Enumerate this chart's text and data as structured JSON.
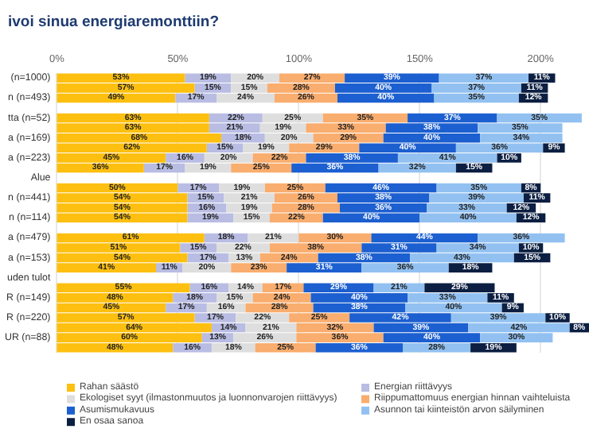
{
  "chart_data": {
    "type": "bar",
    "orientation": "horizontal",
    "stacked": true,
    "title": "ivoi sinua energiaremonttiin?",
    "categories": [
      "(n=1000)",
      null,
      "n (n=493)",
      null,
      "tta (n=52)",
      null,
      "a (n=169)",
      null,
      "a (n=223)",
      null,
      "Alue",
      null,
      "n (n=441)",
      null,
      "n (n=114)",
      null,
      "a (n=479)",
      null,
      "a (n=153)",
      null,
      "uden tulot",
      null,
      "R (n=149)",
      null,
      "R (n=220)",
      null,
      "UR (n=88)",
      null
    ],
    "xlim": [
      0,
      220
    ],
    "xticks": [
      {
        "value": 0,
        "label": "0%"
      },
      {
        "value": 50,
        "label": "50%"
      },
      {
        "value": 100,
        "label": "100%"
      },
      {
        "value": 150,
        "label": "150%"
      },
      {
        "value": 200,
        "label": "200%"
      }
    ],
    "grid": "x",
    "legend": "bottom",
    "series": [
      {
        "name": "Rahan säästö",
        "color": "#fdc010",
        "values": [
          53,
          57,
          49,
          null,
          63,
          63,
          68,
          62,
          45,
          36,
          null,
          50,
          54,
          54,
          54,
          null,
          61,
          51,
          54,
          41,
          null,
          55,
          48,
          45,
          57,
          64,
          60,
          48
        ],
        "value_labels": [
          "53%",
          "57%",
          "49%",
          null,
          "63%",
          "63%",
          "68%",
          "62%",
          "45%",
          "36%",
          null,
          "50%",
          "54%",
          "54%",
          "54%",
          null,
          "61%",
          "51%",
          "54%",
          "41%",
          null,
          "55%",
          "48%",
          "45%",
          "57%",
          "64%",
          "60%",
          "48%"
        ]
      },
      {
        "name": "Energian riittävyys",
        "color": "#b9bde3",
        "values": [
          19,
          15,
          17,
          null,
          22,
          21,
          18,
          15,
          16,
          17,
          null,
          17,
          15,
          16,
          19,
          null,
          18,
          15,
          17,
          11,
          null,
          16,
          18,
          17,
          17,
          14,
          13,
          16
        ],
        "value_labels": [
          "19%",
          "15%",
          "17%",
          null,
          "22%",
          "21%",
          "18%",
          "15%",
          "16%",
          "17%",
          null,
          "17%",
          "15%",
          "16%",
          "19%",
          null,
          "18%",
          "15%",
          "17%",
          "11%",
          null,
          "16%",
          "18%",
          "17%",
          "17%",
          "14%",
          "13%",
          "16%"
        ]
      },
      {
        "name": "Ekologiset syyt (ilmastonmuutos ja luonnonvarojen riittävyys)",
        "color": "#dedede",
        "values": [
          20,
          15,
          24,
          null,
          25,
          19,
          20,
          19,
          20,
          19,
          null,
          19,
          21,
          19,
          15,
          null,
          21,
          22,
          13,
          20,
          null,
          14,
          15,
          16,
          22,
          21,
          26,
          18
        ],
        "value_labels": [
          "20%",
          "15%",
          "24%",
          null,
          "25%",
          "19%",
          "20%",
          "19%",
          "20%",
          "19%",
          null,
          "19%",
          "21%",
          "19%",
          "15%",
          null,
          "21%",
          "22%",
          "13%",
          "20%",
          null,
          "14%",
          "15%",
          "16%",
          "22%",
          "21%",
          "26%",
          "18%"
        ]
      },
      {
        "name": "Riippumattomuus energian hinnan vaihteluista",
        "color": "#f9ad6e",
        "values": [
          27,
          28,
          26,
          null,
          35,
          33,
          29,
          29,
          22,
          25,
          null,
          25,
          26,
          28,
          22,
          null,
          30,
          38,
          24,
          23,
          null,
          17,
          24,
          28,
          25,
          32,
          36,
          25
        ],
        "value_labels": [
          "27%",
          "28%",
          "26%",
          null,
          "35%",
          "33%",
          "29%",
          "29%",
          "22%",
          "25%",
          null,
          "25%",
          "26%",
          "28%",
          "22%",
          null,
          "30%",
          "38%",
          "24%",
          "23%",
          null,
          "17%",
          "24%",
          "28%",
          "25%",
          "32%",
          "36%",
          "25%"
        ]
      },
      {
        "name": "Asumismukavuus",
        "color": "#1c5fd0",
        "values": [
          39,
          40,
          40,
          null,
          37,
          38,
          40,
          40,
          38,
          36,
          null,
          46,
          38,
          36,
          40,
          null,
          44,
          31,
          38,
          31,
          null,
          29,
          40,
          38,
          42,
          39,
          40,
          36
        ],
        "value_labels": [
          "39%",
          "40%",
          "40%",
          null,
          "37%",
          "38%",
          "40%",
          "40%",
          "38%",
          "36%",
          null,
          "46%",
          "38%",
          "36%",
          "40%",
          null,
          "44%",
          "31%",
          "38%",
          "31%",
          null,
          "29%",
          "40%",
          "38%",
          "42%",
          "39%",
          "40%",
          "36%"
        ]
      },
      {
        "name": "Asunnon tai kiinteistön arvon säilyminen",
        "color": "#92c1f1",
        "values": [
          37,
          37,
          35,
          null,
          35,
          35,
          34,
          36,
          41,
          32,
          null,
          35,
          39,
          33,
          40,
          null,
          36,
          34,
          43,
          36,
          null,
          21,
          33,
          40,
          39,
          42,
          30,
          28
        ],
        "value_labels": [
          "37%",
          "37%",
          "35%",
          null,
          "35%",
          "35%",
          "34%",
          "36%",
          "41%",
          "32%",
          null,
          "35%",
          "39%",
          "33%",
          "40%",
          null,
          "36%",
          "34%",
          "43%",
          "36%",
          null,
          "21%",
          "33%",
          "40%",
          "39%",
          "42%",
          "30%",
          "28%"
        ]
      },
      {
        "name": "En osaa sanoa",
        "color": "#0c1f42",
        "values": [
          11,
          11,
          12,
          null,
          null,
          null,
          null,
          9,
          10,
          15,
          null,
          8,
          11,
          12,
          12,
          null,
          null,
          10,
          15,
          18,
          null,
          29,
          11,
          9,
          10,
          8,
          null,
          19
        ],
        "value_labels": [
          "11%",
          "11%",
          "12%",
          null,
          null,
          null,
          null,
          "9%",
          "10%",
          "15%",
          null,
          "8%",
          "11%",
          "12%",
          "12%",
          null,
          null,
          "10%",
          "15%",
          "18%",
          null,
          "29%",
          "11%",
          "9%",
          "10%",
          "8%",
          null,
          "19%"
        ]
      }
    ]
  }
}
